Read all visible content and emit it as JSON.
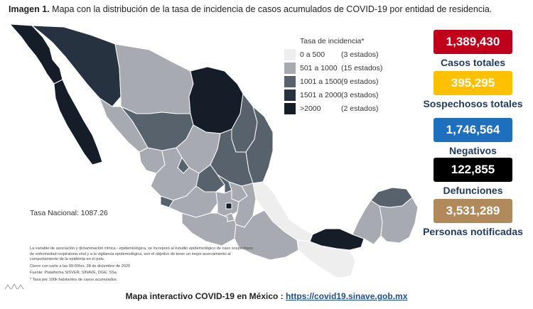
{
  "title": {
    "prefix": "Imagen 1.",
    "text": "Mapa con la distribución de la tasa de incidencia de casos acumulados de COVID-19 por entidad de residencia."
  },
  "legend": {
    "title": "Tasa de incidencia*",
    "items": [
      {
        "range": "0 a   500",
        "count": "(3 estados)",
        "color": "#eeeeee"
      },
      {
        "range": "501 a  1000",
        "count": "(15 estados)",
        "color": "#a7abb1"
      },
      {
        "range": "1001 a  1500",
        "count": "(9 estados)",
        "color": "#58626d"
      },
      {
        "range": "1501 a  2000",
        "count": "(3 estados)",
        "color": "#26323f"
      },
      {
        "range": ">2000",
        "count": "(2 estados)",
        "color": "#141d28"
      }
    ]
  },
  "national_rate": "Tasa Nacional: 1087.26",
  "notes": [
    "La variable de asociación y dictaminación clínica - epidemiológica, se incorporó al estudio epidemiológico de caso sospechoso de enfermedad respiratoria viral y a la vigilancia epidemiológica, con el objetivo de tener un mejor acercamiento al comportamiento de la epidemia en el país.",
    "Cierre con corte a las 09:00hrs, 28 de diciembre de 2020",
    "Fuente: Plataforma SISVER, SINAVE, DGE, SSa.",
    "* Tasa por 100k habitantes de casos acumulados."
  ],
  "stats": [
    {
      "value": "1,389,430",
      "label": "Casos totales",
      "color": "#c0001a"
    },
    {
      "value": "395,295",
      "label": "Sospechosos totales",
      "color": "#ffc000"
    },
    {
      "value": "1,746,564",
      "label": "Negativos",
      "color": "#1f6fbf"
    },
    {
      "value": "122,855",
      "label": "Defunciones",
      "color": "#000000"
    },
    {
      "value": "3,531,289",
      "label": "Personas notificadas",
      "color": "#b08a5a"
    }
  ],
  "footer": {
    "text": "Mapa interactivo COVID-19 en México :",
    "link": "https://covid19.sinave.gob.mx"
  }
}
